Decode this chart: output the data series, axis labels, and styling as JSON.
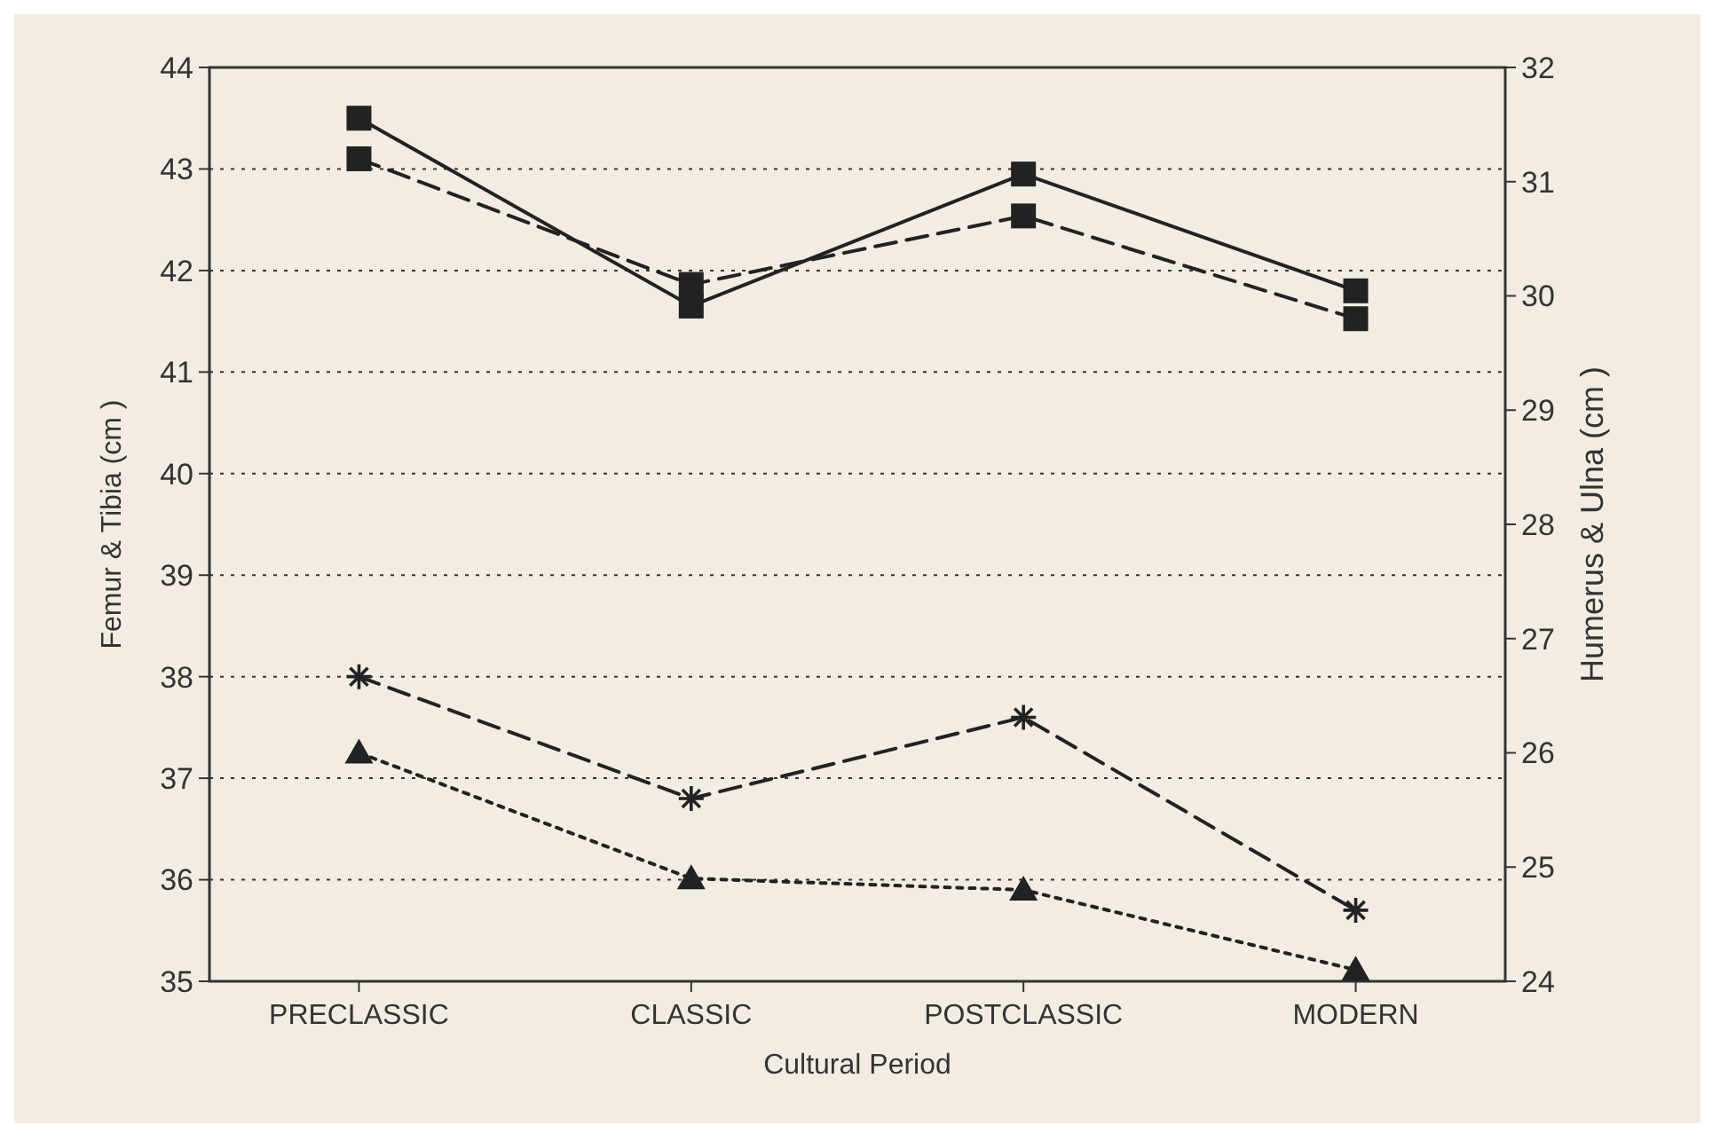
{
  "chart_data": {
    "type": "line",
    "xlabel": "Cultural Period",
    "ylabel": "Femur & Tibia (cm )",
    "y2label": "Humerus & Ulna (cm )",
    "categories": [
      "PRECLASSIC",
      "CLASSIC",
      "POSTCLASSIC",
      "MODERN"
    ],
    "ylim": [
      35,
      44
    ],
    "yticks": [
      35,
      36,
      37,
      38,
      39,
      40,
      41,
      42,
      43,
      44
    ],
    "y2lim": [
      24,
      32
    ],
    "y2ticks": [
      24,
      25,
      26,
      27,
      28,
      29,
      30,
      31,
      32
    ],
    "grid": "y",
    "series": [
      {
        "color": "#222222",
        "marker": "square",
        "line_style": "solid",
        "values": [
          43.5,
          41.65,
          42.95,
          41.8
        ]
      },
      {
        "color": "#222222",
        "marker": "square",
        "line_style": "dashed",
        "axis": "y2",
        "values": [
          31.2,
          30.1,
          30.7,
          29.8
        ]
      },
      {
        "color": "#222222",
        "marker": "cross",
        "line_style": "dashed",
        "values": [
          38.0,
          36.8,
          37.6,
          35.7
        ]
      },
      {
        "color": "#222222",
        "marker": "triangle",
        "line_style": "dotted",
        "axis": "y2",
        "values": [
          26.0,
          24.9,
          24.8,
          24.1
        ]
      }
    ]
  }
}
